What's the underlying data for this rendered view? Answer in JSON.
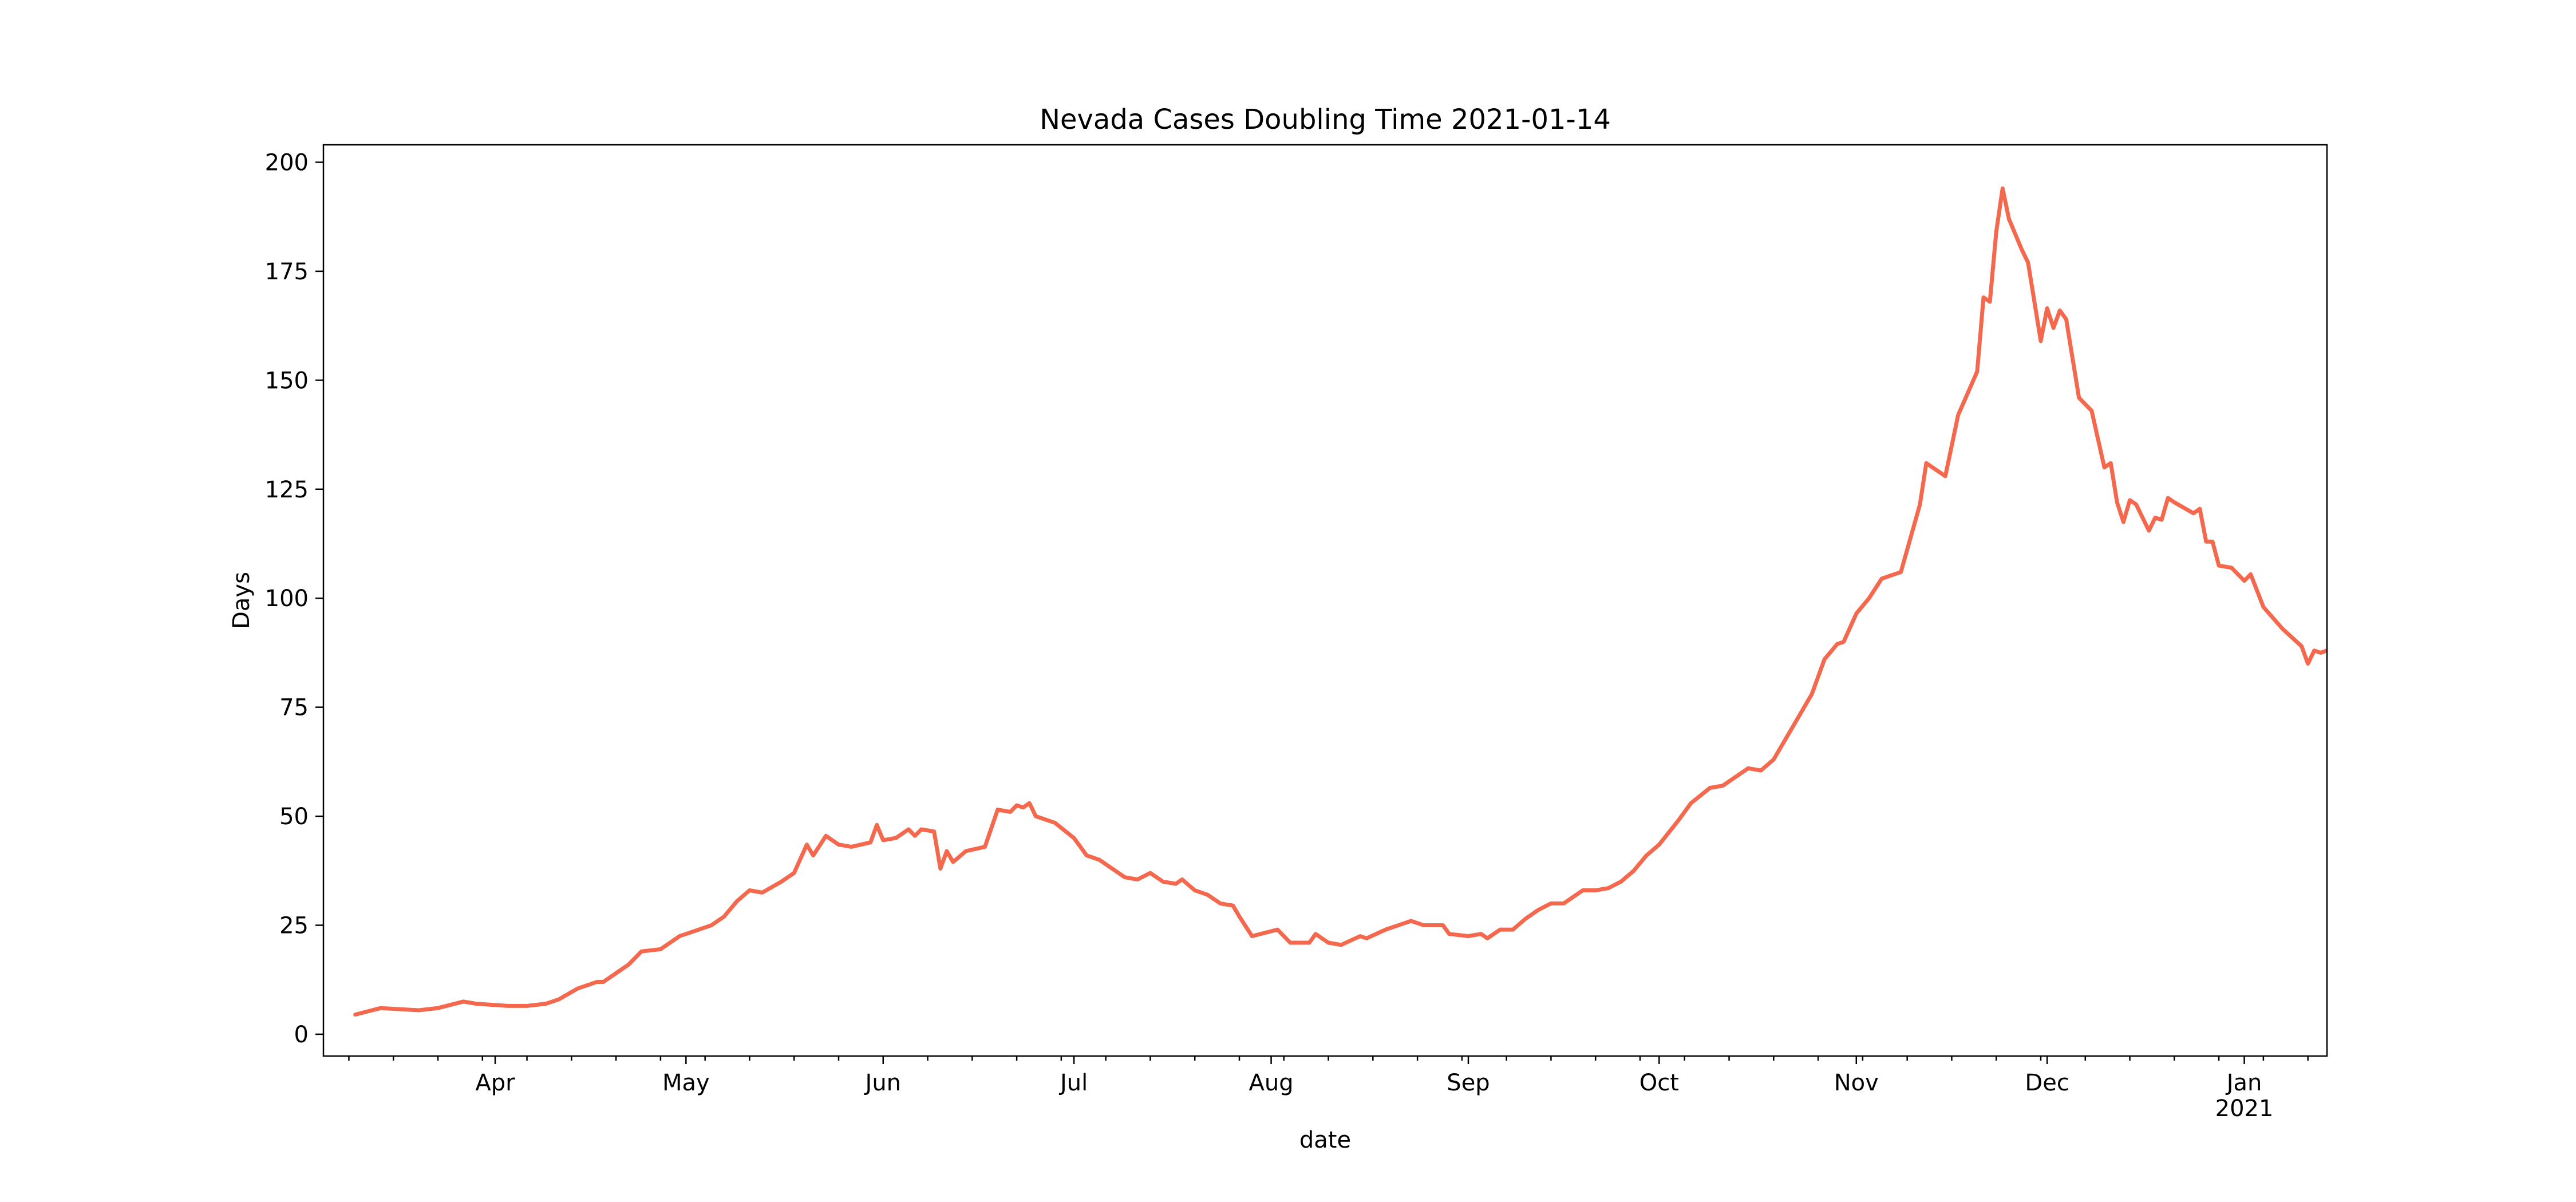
{
  "chart_data": {
    "type": "line",
    "title": "Nevada Cases Doubling Time 2021-01-14",
    "xlabel": "date",
    "ylabel": "Days",
    "x_range": [
      "2020-03-05",
      "2021-01-14"
    ],
    "ylim": [
      -5,
      204
    ],
    "grid": false,
    "legend": "none",
    "y_ticks": [
      0,
      25,
      50,
      75,
      100,
      125,
      150,
      175,
      200
    ],
    "x_ticks": [
      {
        "date": "2020-04-01",
        "label": "Apr",
        "sublabel": ""
      },
      {
        "date": "2020-05-01",
        "label": "May",
        "sublabel": ""
      },
      {
        "date": "2020-06-01",
        "label": "Jun",
        "sublabel": ""
      },
      {
        "date": "2020-07-01",
        "label": "Jul",
        "sublabel": ""
      },
      {
        "date": "2020-08-01",
        "label": "Aug",
        "sublabel": ""
      },
      {
        "date": "2020-09-01",
        "label": "Sep",
        "sublabel": ""
      },
      {
        "date": "2020-10-01",
        "label": "Oct",
        "sublabel": ""
      },
      {
        "date": "2020-11-01",
        "label": "Nov",
        "sublabel": ""
      },
      {
        "date": "2020-12-01",
        "label": "Dec",
        "sublabel": ""
      },
      {
        "date": "2021-01-01",
        "label": "Jan",
        "sublabel": "2021"
      }
    ],
    "series": [
      {
        "color": "#f4694e",
        "points": [
          [
            "2020-03-10",
            4.5
          ],
          [
            "2020-03-14",
            6
          ],
          [
            "2020-03-20",
            5.5
          ],
          [
            "2020-03-23",
            6
          ],
          [
            "2020-03-27",
            7.5
          ],
          [
            "2020-03-29",
            7
          ],
          [
            "2020-04-03",
            6.5
          ],
          [
            "2020-04-06",
            6.5
          ],
          [
            "2020-04-09",
            7
          ],
          [
            "2020-04-11",
            8
          ],
          [
            "2020-04-14",
            10.5
          ],
          [
            "2020-04-17",
            12
          ],
          [
            "2020-04-18",
            12
          ],
          [
            "2020-04-20",
            14
          ],
          [
            "2020-04-22",
            16
          ],
          [
            "2020-04-24",
            19
          ],
          [
            "2020-04-27",
            19.5
          ],
          [
            "2020-04-30",
            22.5
          ],
          [
            "2020-05-02",
            23.5
          ],
          [
            "2020-05-05",
            25
          ],
          [
            "2020-05-07",
            27
          ],
          [
            "2020-05-09",
            30.5
          ],
          [
            "2020-05-11",
            33
          ],
          [
            "2020-05-13",
            32.5
          ],
          [
            "2020-05-16",
            35
          ],
          [
            "2020-05-18",
            37
          ],
          [
            "2020-05-20",
            43.5
          ],
          [
            "2020-05-21",
            41
          ],
          [
            "2020-05-23",
            45.5
          ],
          [
            "2020-05-25",
            43.5
          ],
          [
            "2020-05-27",
            43
          ],
          [
            "2020-05-30",
            44
          ],
          [
            "2020-05-31",
            48
          ],
          [
            "2020-06-01",
            44.5
          ],
          [
            "2020-06-03",
            45
          ],
          [
            "2020-06-05",
            47
          ],
          [
            "2020-06-06",
            45.5
          ],
          [
            "2020-06-07",
            47
          ],
          [
            "2020-06-09",
            46.5
          ],
          [
            "2020-06-10",
            38
          ],
          [
            "2020-06-11",
            42
          ],
          [
            "2020-06-12",
            39.5
          ],
          [
            "2020-06-14",
            42
          ],
          [
            "2020-06-17",
            43
          ],
          [
            "2020-06-19",
            51.5
          ],
          [
            "2020-06-21",
            51
          ],
          [
            "2020-06-22",
            52.5
          ],
          [
            "2020-06-23",
            52
          ],
          [
            "2020-06-24",
            53
          ],
          [
            "2020-06-25",
            50
          ],
          [
            "2020-06-28",
            48.5
          ],
          [
            "2020-07-01",
            45
          ],
          [
            "2020-07-03",
            41
          ],
          [
            "2020-07-05",
            40
          ],
          [
            "2020-07-07",
            38
          ],
          [
            "2020-07-09",
            36
          ],
          [
            "2020-07-11",
            35.5
          ],
          [
            "2020-07-13",
            37
          ],
          [
            "2020-07-15",
            35
          ],
          [
            "2020-07-17",
            34.5
          ],
          [
            "2020-07-18",
            35.5
          ],
          [
            "2020-07-20",
            33
          ],
          [
            "2020-07-22",
            32
          ],
          [
            "2020-07-24",
            30
          ],
          [
            "2020-07-26",
            29.5
          ],
          [
            "2020-07-27",
            27
          ],
          [
            "2020-07-29",
            22.5
          ],
          [
            "2020-08-02",
            24
          ],
          [
            "2020-08-04",
            21
          ],
          [
            "2020-08-07",
            21
          ],
          [
            "2020-08-08",
            23
          ],
          [
            "2020-08-10",
            21
          ],
          [
            "2020-08-12",
            20.5
          ],
          [
            "2020-08-15",
            22.5
          ],
          [
            "2020-08-16",
            22
          ],
          [
            "2020-08-19",
            24
          ],
          [
            "2020-08-21",
            25
          ],
          [
            "2020-08-23",
            26
          ],
          [
            "2020-08-25",
            25
          ],
          [
            "2020-08-28",
            25
          ],
          [
            "2020-08-29",
            23
          ],
          [
            "2020-09-01",
            22.5
          ],
          [
            "2020-09-03",
            23
          ],
          [
            "2020-09-04",
            22
          ],
          [
            "2020-09-06",
            24
          ],
          [
            "2020-09-08",
            24
          ],
          [
            "2020-09-10",
            26.5
          ],
          [
            "2020-09-12",
            28.5
          ],
          [
            "2020-09-14",
            30
          ],
          [
            "2020-09-16",
            30
          ],
          [
            "2020-09-19",
            33
          ],
          [
            "2020-09-21",
            33
          ],
          [
            "2020-09-23",
            33.5
          ],
          [
            "2020-09-25",
            35
          ],
          [
            "2020-09-27",
            37.5
          ],
          [
            "2020-09-29",
            41
          ],
          [
            "2020-10-01",
            43.5
          ],
          [
            "2020-10-04",
            49
          ],
          [
            "2020-10-06",
            53
          ],
          [
            "2020-10-09",
            56.5
          ],
          [
            "2020-10-11",
            57
          ],
          [
            "2020-10-14",
            60
          ],
          [
            "2020-10-15",
            61
          ],
          [
            "2020-10-17",
            60.5
          ],
          [
            "2020-10-19",
            63
          ],
          [
            "2020-10-21",
            68
          ],
          [
            "2020-10-23",
            73
          ],
          [
            "2020-10-25",
            78
          ],
          [
            "2020-10-27",
            86
          ],
          [
            "2020-10-29",
            89.5
          ],
          [
            "2020-10-30",
            90
          ],
          [
            "2020-11-01",
            96.5
          ],
          [
            "2020-11-03",
            100
          ],
          [
            "2020-11-05",
            104.5
          ],
          [
            "2020-11-08",
            106
          ],
          [
            "2020-11-11",
            121.5
          ],
          [
            "2020-11-12",
            131
          ],
          [
            "2020-11-15",
            128
          ],
          [
            "2020-11-17",
            142
          ],
          [
            "2020-11-20",
            152
          ],
          [
            "2020-11-21",
            169
          ],
          [
            "2020-11-22",
            168
          ],
          [
            "2020-11-23",
            184
          ],
          [
            "2020-11-24",
            194
          ],
          [
            "2020-11-25",
            187
          ],
          [
            "2020-11-27",
            180
          ],
          [
            "2020-11-28",
            177
          ],
          [
            "2020-11-30",
            159
          ],
          [
            "2020-12-01",
            166.5
          ],
          [
            "2020-12-02",
            162
          ],
          [
            "2020-12-03",
            166
          ],
          [
            "2020-12-04",
            164
          ],
          [
            "2020-12-06",
            146
          ],
          [
            "2020-12-08",
            143
          ],
          [
            "2020-12-10",
            130
          ],
          [
            "2020-12-11",
            131
          ],
          [
            "2020-12-12",
            122
          ],
          [
            "2020-12-13",
            117.5
          ],
          [
            "2020-12-14",
            122.5
          ],
          [
            "2020-12-15",
            121.5
          ],
          [
            "2020-12-17",
            115.5
          ],
          [
            "2020-12-18",
            118.5
          ],
          [
            "2020-12-19",
            118
          ],
          [
            "2020-12-20",
            123
          ],
          [
            "2020-12-21",
            122
          ],
          [
            "2020-12-24",
            119.5
          ],
          [
            "2020-12-25",
            120.5
          ],
          [
            "2020-12-26",
            113
          ],
          [
            "2020-12-27",
            113
          ],
          [
            "2020-12-28",
            107.5
          ],
          [
            "2020-12-30",
            107
          ],
          [
            "2021-01-01",
            104
          ],
          [
            "2021-01-02",
            105.5
          ],
          [
            "2021-01-04",
            98
          ],
          [
            "2021-01-07",
            93
          ],
          [
            "2021-01-10",
            89
          ],
          [
            "2021-01-11",
            85
          ],
          [
            "2021-01-12",
            88
          ],
          [
            "2021-01-13",
            87.5
          ],
          [
            "2021-01-14",
            88
          ]
        ]
      }
    ]
  }
}
